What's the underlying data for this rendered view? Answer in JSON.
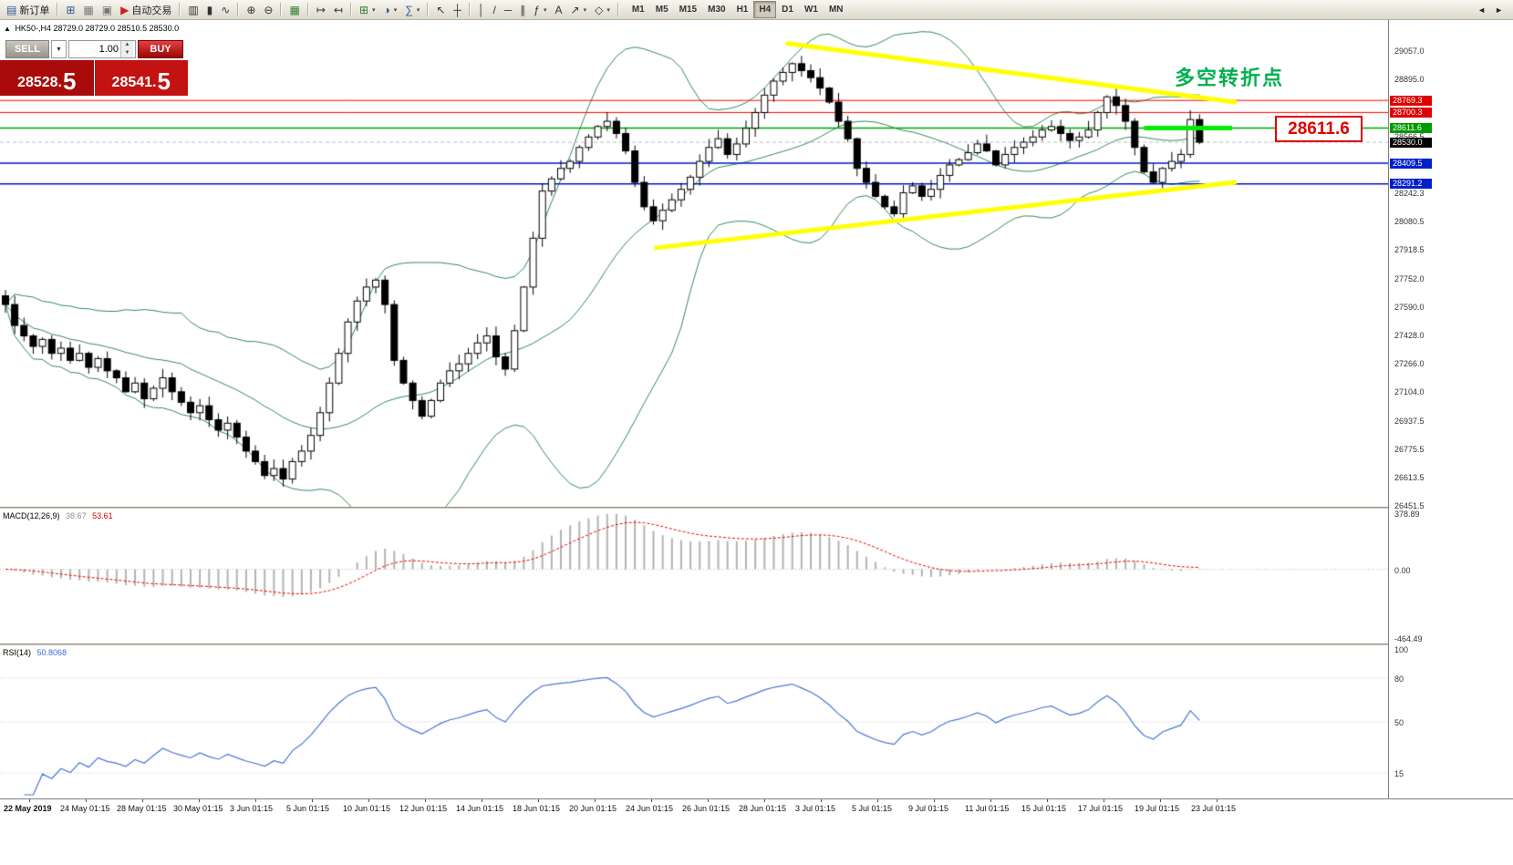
{
  "toolbar": {
    "items": [
      {
        "name": "new-order",
        "label": "新订单",
        "glyph": "▤",
        "color": "#2b579a"
      },
      {
        "sep": true
      },
      {
        "name": "charts",
        "glyph": "⊞",
        "color": "#2b579a"
      },
      {
        "name": "profiles",
        "glyph": "▦",
        "color": "#777777"
      },
      {
        "name": "terminal",
        "glyph": "▣",
        "color": "#777777"
      },
      {
        "name": "autotrading",
        "label": "自动交易",
        "glyph": "▶",
        "color": "#cc2222"
      },
      {
        "sep": true
      },
      {
        "name": "bar-chart",
        "glyph": "▥",
        "color": "#333333"
      },
      {
        "name": "candlestick-chart",
        "glyph": "▮",
        "color": "#333333"
      },
      {
        "name": "line-chart",
        "glyph": "∿",
        "color": "#333333"
      },
      {
        "sep": true
      },
      {
        "name": "zoom-in",
        "glyph": "⊕",
        "color": "#333333"
      },
      {
        "name": "zoom-out",
        "glyph": "⊖",
        "color": "#333333"
      },
      {
        "sep": true
      },
      {
        "name": "tile-windows",
        "glyph": "▦",
        "color": "#2e7d32"
      },
      {
        "sep": true
      },
      {
        "name": "auto-scroll",
        "glyph": "↦",
        "color": "#333333"
      },
      {
        "name": "chart-shift",
        "glyph": "↤",
        "color": "#333333"
      },
      {
        "sep": true
      },
      {
        "name": "new-chart",
        "glyph": "⊞",
        "color": "#2e7d32",
        "caret": true
      },
      {
        "name": "chart-profiles",
        "glyph": "◑",
        "color": "#2b579a",
        "caret": true
      },
      {
        "name": "indicators",
        "glyph": "∑",
        "color": "#2b579a",
        "caret": true
      },
      {
        "sep": true
      },
      {
        "name": "cursor",
        "glyph": "↖",
        "color": "#333333"
      },
      {
        "name": "crosshair",
        "glyph": "┼",
        "color": "#333333"
      },
      {
        "sep": true
      },
      {
        "name": "vertical-line",
        "glyph": "│",
        "color": "#333333"
      },
      {
        "name": "trendline",
        "glyph": "/",
        "color": "#333333"
      },
      {
        "name": "horizontal-line",
        "glyph": "─",
        "color": "#333333"
      },
      {
        "name": "equidistant-channel",
        "glyph": "∥",
        "color": "#333333"
      },
      {
        "name": "fibonacci",
        "glyph": "ƒ",
        "color": "#333333",
        "caret": true
      },
      {
        "name": "text-label",
        "glyph": "A",
        "color": "#333333"
      },
      {
        "name": "arrows",
        "glyph": "↗",
        "color": "#333333",
        "caret": true
      },
      {
        "name": "shapes",
        "glyph": "◇",
        "color": "#333333",
        "caret": true
      }
    ],
    "timeframes": [
      "M1",
      "M5",
      "M15",
      "M30",
      "H1",
      "H4",
      "D1",
      "W1",
      "MN"
    ],
    "active_timeframe": "H4",
    "overflow_left": "◄",
    "overflow_right": "►"
  },
  "chart_header": {
    "marker": "▲",
    "symbol_period": "HK50-,H4",
    "ohlc_text": "28729.0 28729.0 28510.5 28530.0"
  },
  "trade_panel": {
    "sell_label": "SELL",
    "buy_label": "BUY",
    "volume": "1.00",
    "dropdown_glyph": "▼",
    "spin_up": "▲",
    "spin_down": "▼",
    "sell_price": {
      "main": "28528.",
      "big": "5"
    },
    "buy_price": {
      "main": "28541.",
      "big": "5"
    }
  },
  "annotations": {
    "turning_point": "多空转折点",
    "price_callout": "28611.6"
  },
  "price_axis": {
    "scale_labels": [
      29057.0,
      28895.0,
      28566.5,
      28242.3,
      28080.5,
      27918.5,
      27752.0,
      27590.0,
      27428.0,
      27266.0,
      27104.0,
      26937.5,
      26775.5,
      26613.5,
      26451.5
    ],
    "tags": [
      {
        "text": "28769.3",
        "price": 28769.3,
        "color": "red"
      },
      {
        "text": "28700.3",
        "price": 28700.3,
        "color": "red"
      },
      {
        "text": "28611.6",
        "price": 28611.6,
        "color": "green"
      },
      {
        "text": "28530.0",
        "price": 28530.0,
        "color": "black"
      },
      {
        "text": "28409.5",
        "price": 28409.5,
        "color": "blue"
      },
      {
        "text": "28291.2",
        "price": 28291.2,
        "color": "blue"
      }
    ]
  },
  "chart_data": {
    "type": "candlestick",
    "symbol": "HK50-",
    "timeframe": "H4",
    "price_axis_max": 29230,
    "price_axis_min": 26441,
    "first_open": 27650,
    "closes": [
      27600,
      27480,
      27420,
      27360,
      27400,
      27320,
      27350,
      27280,
      27320,
      27240,
      27290,
      27220,
      27180,
      27100,
      27150,
      27060,
      27120,
      27180,
      27100,
      27040,
      26980,
      27020,
      26940,
      26880,
      26920,
      26840,
      26760,
      26700,
      26620,
      26660,
      26600,
      26700,
      26760,
      26850,
      26980,
      27150,
      27320,
      27500,
      27620,
      27700,
      27740,
      27600,
      27280,
      27150,
      27050,
      26960,
      27050,
      27150,
      27220,
      27260,
      27320,
      27380,
      27420,
      27300,
      27230,
      27450,
      27700,
      27980,
      28250,
      28320,
      28380,
      28420,
      28500,
      28560,
      28620,
      28650,
      28580,
      28480,
      28300,
      28160,
      28080,
      28140,
      28200,
      28260,
      28330,
      28420,
      28500,
      28550,
      28460,
      28520,
      28610,
      28700,
      28800,
      28880,
      28930,
      28980,
      28940,
      28900,
      28840,
      28760,
      28650,
      28550,
      28380,
      28300,
      28220,
      28160,
      28120,
      28240,
      28280,
      28220,
      28260,
      28340,
      28400,
      28430,
      28470,
      28520,
      28480,
      28400,
      28460,
      28500,
      28530,
      28560,
      28600,
      28620,
      28580,
      28540,
      28560,
      28600,
      28700,
      28790,
      28740,
      28650,
      28500,
      28360,
      28300,
      28380,
      28420,
      28460,
      28660,
      28530
    ],
    "bollinger": {
      "period": 20,
      "deviation": 2,
      "color": "#2e8b57"
    },
    "hlines": [
      {
        "price": 28769.3,
        "color": "#ff0000",
        "width": 1
      },
      {
        "price": 28700.3,
        "color": "#ff0000",
        "width": 1
      },
      {
        "price": 28611.6,
        "color": "#00a000",
        "width": 1.5
      },
      {
        "price": 28409.5,
        "color": "#0018cc",
        "width": 1.5
      },
      {
        "price": 28291.2,
        "color": "#0018cc",
        "width": 1.5
      }
    ],
    "current_price": 28530.0,
    "highlight_segment": {
      "price": 28611.6,
      "i1": 123,
      "i2": 132.5,
      "color": "#00ee00",
      "width": 5
    },
    "trendlines": [
      {
        "i1": 84.5,
        "p1": 29095,
        "i2": 132.8,
        "p2": 28760,
        "color": "#ffff00",
        "width": 5
      },
      {
        "i1": 70.3,
        "p1": 27925,
        "i2": 132.8,
        "p2": 28300,
        "color": "#ffff00",
        "width": 5
      }
    ]
  },
  "macd": {
    "label": "MACD(12,26,9)",
    "value_main": "38.67",
    "value_signal": "53.61",
    "fast": 12,
    "slow": 26,
    "signal": 9,
    "max": 378.89,
    "min": -464.49,
    "axis_labels": [
      378.89,
      0.0,
      -464.49
    ]
  },
  "rsi": {
    "label": "RSI(14)",
    "value": "50.8068",
    "period": 14,
    "axis_labels": [
      100,
      80,
      50,
      15
    ],
    "levels": [
      80,
      50,
      15
    ]
  },
  "time_axis": {
    "labels": [
      "22 May 2019",
      "24 May 01:15",
      "28 May 01:15",
      "30 May 01:15",
      "3 Jun 01:15",
      "5 Jun 01:15",
      "10 Jun 01:15",
      "12 Jun 01:15",
      "14 Jun 01:15",
      "18 Jun 01:15",
      "20 Jun 01:15",
      "24 Jun 01:15",
      "26 Jun 01:15",
      "28 Jun 01:15",
      "3 Jul 01:15",
      "5 Jul 01:15",
      "9 Jul 01:15",
      "11 Jul 01:15",
      "15 Jul 01:15",
      "17 Jul 01:15",
      "19 Jul 01:15",
      "23 Jul 01:15"
    ]
  }
}
